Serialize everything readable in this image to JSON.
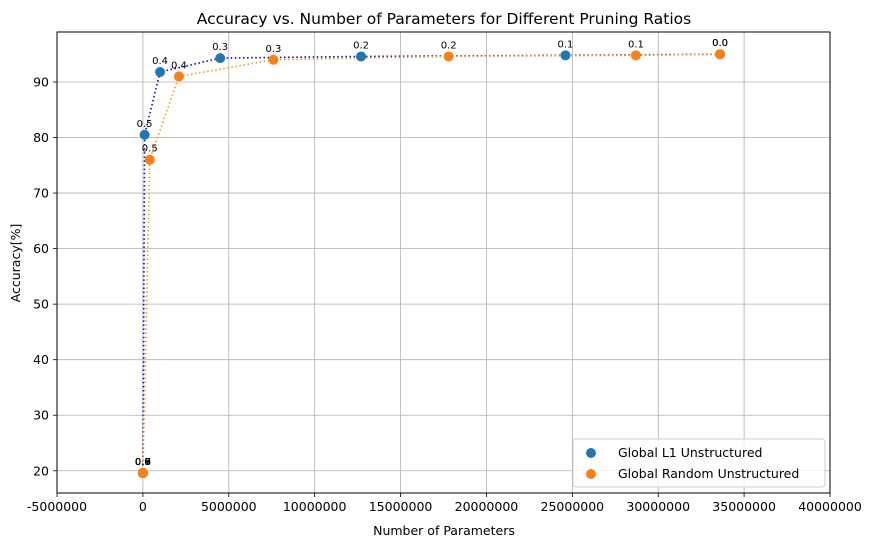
{
  "chart_data": {
    "type": "scatter",
    "title": "Accuracy vs. Number of Parameters for Different Pruning Ratios",
    "xlabel": "Number of Parameters",
    "ylabel": "Accuracy[%]",
    "xlim": [
      -5000000,
      40000000
    ],
    "ylim": [
      16,
      99
    ],
    "xticks": [
      -5000000,
      0,
      5000000,
      10000000,
      15000000,
      20000000,
      25000000,
      30000000,
      35000000,
      40000000
    ],
    "xtick_labels": [
      "-5000000",
      "0",
      "5000000",
      "10000000",
      "15000000",
      "20000000",
      "25000000",
      "30000000",
      "35000000",
      "40000000"
    ],
    "yticks": [
      20,
      30,
      40,
      50,
      60,
      70,
      80,
      90
    ],
    "ytick_labels": [
      "20",
      "30",
      "40",
      "50",
      "60",
      "70",
      "80",
      "90"
    ],
    "grid": true,
    "legend_position": "lower-right",
    "series": [
      {
        "name": "Global L1 Unstructured",
        "marker_color": "#1f77b4",
        "line_color": "#0000ff",
        "line_style": "dotted",
        "points": [
          {
            "x": 33600000,
            "y": 95.0,
            "label": "0.0"
          },
          {
            "x": 24600000,
            "y": 94.8,
            "label": "0.1"
          },
          {
            "x": 12700000,
            "y": 94.6,
            "label": "0.2"
          },
          {
            "x": 4500000,
            "y": 94.3,
            "label": "0.3"
          },
          {
            "x": 1000000,
            "y": 91.8,
            "label": "0.4"
          },
          {
            "x": 100000,
            "y": 80.5,
            "label": "0.5"
          },
          {
            "x": 0,
            "y": 19.6,
            "label": "0.6"
          },
          {
            "x": 0,
            "y": 19.6,
            "label": "0.7"
          },
          {
            "x": 0,
            "y": 19.6,
            "label": "0.8"
          },
          {
            "x": 0,
            "y": 19.6,
            "label": "0.9"
          }
        ]
      },
      {
        "name": "Global Random Unstructured",
        "marker_color": "#ff7f0e",
        "line_color": "#ff9f00",
        "line_style": "dotted",
        "points": [
          {
            "x": 33600000,
            "y": 95.0,
            "label": "0.0"
          },
          {
            "x": 28700000,
            "y": 94.8,
            "label": "0.1"
          },
          {
            "x": 17800000,
            "y": 94.6,
            "label": "0.2"
          },
          {
            "x": 7600000,
            "y": 94.0,
            "label": "0.3"
          },
          {
            "x": 2100000,
            "y": 91.0,
            "label": "0.4"
          },
          {
            "x": 400000,
            "y": 76.0,
            "label": "0.5"
          },
          {
            "x": 0,
            "y": 19.6,
            "label": "0.6"
          },
          {
            "x": 0,
            "y": 19.6,
            "label": "0.7"
          },
          {
            "x": 0,
            "y": 19.6,
            "label": "0.8"
          },
          {
            "x": 0,
            "y": 19.6,
            "label": "0.9"
          }
        ]
      }
    ]
  }
}
